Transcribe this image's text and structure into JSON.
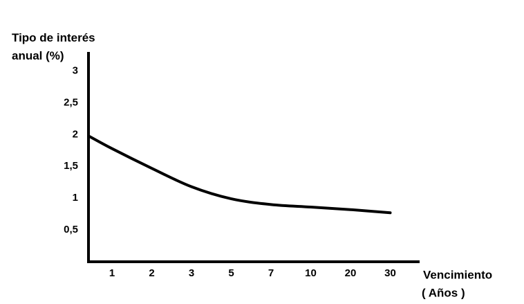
{
  "chart_data": {
    "type": "line",
    "ylabel": "Tipo de interés anual (%)",
    "xlabel": "Vencimiento",
    "xunit": "( Años )",
    "categories": [
      null,
      "1",
      "2",
      "3",
      "5",
      "7",
      "10",
      "20",
      "30"
    ],
    "series": [
      {
        "name": null,
        "color": "#000000",
        "values": [
          1.98,
          1.78,
          1.47,
          1.18,
          0.99,
          0.9,
          0.86,
          0.82,
          0.77
        ]
      }
    ],
    "ylim": [
      0,
      3.3
    ],
    "yticks": [
      {
        "value": 0.5,
        "label": "0,5"
      },
      1,
      {
        "value": 1.5,
        "label": "1,5"
      },
      2,
      {
        "value": 2.5,
        "label": "2,5"
      },
      3
    ],
    "grid": false
  }
}
